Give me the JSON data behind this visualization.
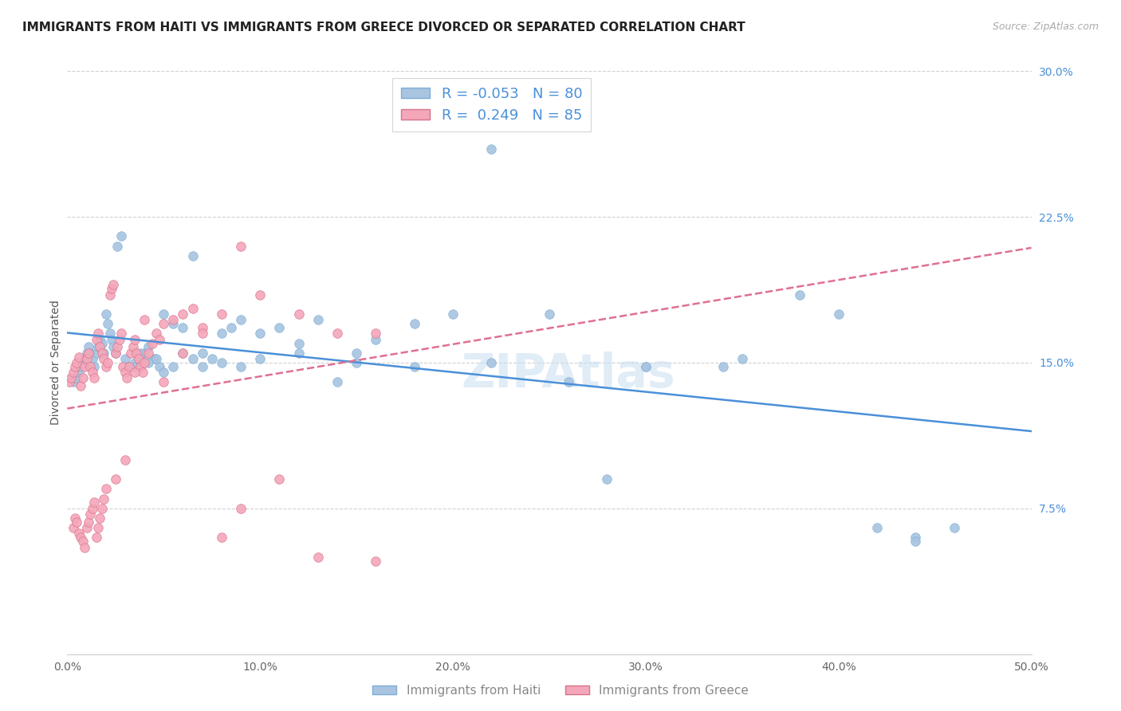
{
  "title": "IMMIGRANTS FROM HAITI VS IMMIGRANTS FROM GREECE DIVORCED OR SEPARATED CORRELATION CHART",
  "source": "Source: ZipAtlas.com",
  "xlabel_label": "Immigrants from Haiti",
  "xlabel_label2": "Immigrants from Greece",
  "ylabel": "Divorced or Separated",
  "xlim": [
    0,
    0.5
  ],
  "ylim": [
    0,
    0.3
  ],
  "xtick_positions": [
    0.0,
    0.1,
    0.2,
    0.3,
    0.4,
    0.5
  ],
  "xtick_labels": [
    "0.0%",
    "10.0%",
    "20.0%",
    "30.0%",
    "40.0%",
    "50.0%"
  ],
  "ytick_positions": [
    0.0,
    0.075,
    0.15,
    0.225,
    0.3
  ],
  "ytick_labels": [
    "",
    "7.5%",
    "15.0%",
    "22.5%",
    "30.0%"
  ],
  "haiti_R": -0.053,
  "haiti_N": 80,
  "greece_R": 0.249,
  "greece_N": 85,
  "haiti_color": "#a8c4e0",
  "greece_color": "#f4a7b9",
  "haiti_line_color": "#4a90d9",
  "greece_line_color": "#e07090",
  "grid_color": "#cccccc",
  "background_color": "#ffffff",
  "haiti_scatter_x": [
    0.003,
    0.005,
    0.006,
    0.007,
    0.008,
    0.009,
    0.01,
    0.011,
    0.012,
    0.013,
    0.014,
    0.015,
    0.016,
    0.017,
    0.018,
    0.019,
    0.02,
    0.021,
    0.022,
    0.023,
    0.024,
    0.025,
    0.026,
    0.028,
    0.03,
    0.032,
    0.035,
    0.038,
    0.04,
    0.042,
    0.045,
    0.048,
    0.05,
    0.055,
    0.06,
    0.065,
    0.07,
    0.075,
    0.08,
    0.085,
    0.09,
    0.1,
    0.11,
    0.12,
    0.13,
    0.14,
    0.15,
    0.16,
    0.18,
    0.2,
    0.22,
    0.25,
    0.28,
    0.3,
    0.34,
    0.38,
    0.42,
    0.44,
    0.035,
    0.038,
    0.042,
    0.046,
    0.05,
    0.055,
    0.06,
    0.065,
    0.07,
    0.08,
    0.09,
    0.1,
    0.12,
    0.15,
    0.18,
    0.22,
    0.26,
    0.3,
    0.35,
    0.4,
    0.44,
    0.46
  ],
  "haiti_scatter_y": [
    0.14,
    0.142,
    0.145,
    0.148,
    0.15,
    0.152,
    0.155,
    0.158,
    0.155,
    0.152,
    0.148,
    0.155,
    0.158,
    0.162,
    0.16,
    0.155,
    0.175,
    0.17,
    0.165,
    0.162,
    0.158,
    0.155,
    0.21,
    0.215,
    0.152,
    0.148,
    0.15,
    0.153,
    0.155,
    0.158,
    0.152,
    0.148,
    0.175,
    0.17,
    0.168,
    0.205,
    0.155,
    0.152,
    0.165,
    0.168,
    0.172,
    0.165,
    0.168,
    0.16,
    0.172,
    0.14,
    0.155,
    0.162,
    0.17,
    0.175,
    0.26,
    0.175,
    0.09,
    0.148,
    0.148,
    0.185,
    0.065,
    0.06,
    0.148,
    0.155,
    0.15,
    0.152,
    0.145,
    0.148,
    0.155,
    0.152,
    0.148,
    0.15,
    0.148,
    0.152,
    0.155,
    0.15,
    0.148,
    0.15,
    0.14,
    0.148,
    0.152,
    0.175,
    0.058,
    0.065
  ],
  "greece_scatter_x": [
    0.001,
    0.002,
    0.003,
    0.004,
    0.005,
    0.006,
    0.007,
    0.008,
    0.009,
    0.01,
    0.011,
    0.012,
    0.013,
    0.014,
    0.015,
    0.016,
    0.017,
    0.018,
    0.019,
    0.02,
    0.021,
    0.022,
    0.023,
    0.024,
    0.025,
    0.026,
    0.027,
    0.028,
    0.029,
    0.03,
    0.031,
    0.032,
    0.033,
    0.034,
    0.035,
    0.036,
    0.037,
    0.038,
    0.039,
    0.04,
    0.042,
    0.044,
    0.046,
    0.048,
    0.05,
    0.055,
    0.06,
    0.065,
    0.07,
    0.08,
    0.09,
    0.1,
    0.12,
    0.14,
    0.16,
    0.003,
    0.004,
    0.005,
    0.006,
    0.007,
    0.008,
    0.009,
    0.01,
    0.011,
    0.012,
    0.013,
    0.014,
    0.015,
    0.016,
    0.017,
    0.018,
    0.019,
    0.02,
    0.025,
    0.03,
    0.035,
    0.04,
    0.05,
    0.06,
    0.07,
    0.08,
    0.09,
    0.11,
    0.13,
    0.16
  ],
  "greece_scatter_y": [
    0.14,
    0.142,
    0.145,
    0.148,
    0.15,
    0.153,
    0.138,
    0.142,
    0.148,
    0.152,
    0.155,
    0.148,
    0.145,
    0.142,
    0.162,
    0.165,
    0.158,
    0.155,
    0.152,
    0.148,
    0.15,
    0.185,
    0.188,
    0.19,
    0.155,
    0.158,
    0.162,
    0.165,
    0.148,
    0.145,
    0.142,
    0.148,
    0.155,
    0.158,
    0.162,
    0.155,
    0.152,
    0.148,
    0.145,
    0.15,
    0.155,
    0.16,
    0.165,
    0.162,
    0.17,
    0.172,
    0.175,
    0.178,
    0.168,
    0.175,
    0.21,
    0.185,
    0.175,
    0.165,
    0.165,
    0.065,
    0.07,
    0.068,
    0.062,
    0.06,
    0.058,
    0.055,
    0.065,
    0.068,
    0.072,
    0.075,
    0.078,
    0.06,
    0.065,
    0.07,
    0.075,
    0.08,
    0.085,
    0.09,
    0.1,
    0.145,
    0.172,
    0.14,
    0.155,
    0.165,
    0.06,
    0.075,
    0.09,
    0.05,
    0.048
  ]
}
